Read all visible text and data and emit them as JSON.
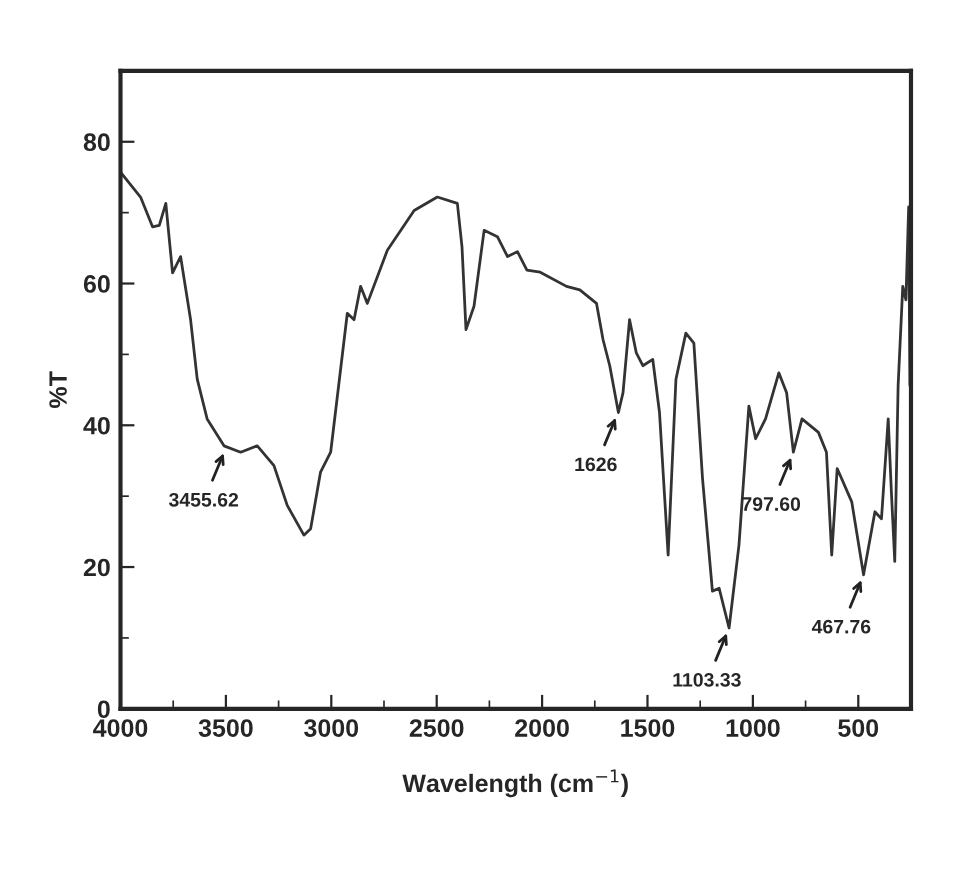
{
  "chart_data": {
    "type": "line",
    "xlabel": "Wavelength (cm$^{−1}$)",
    "ylabel": "%T",
    "xlim": [
      4000,
      250
    ],
    "ylim": [
      0,
      90
    ],
    "xticks": [
      4000,
      3500,
      3000,
      2500,
      2000,
      1500,
      1000,
      500
    ],
    "yticks": [
      0,
      20,
      40,
      60,
      80
    ],
    "grid": false,
    "legend": false,
    "marker": "none",
    "line_style": "solid",
    "series": [
      {
        "color": "#333333",
        "x": [
          4000,
          3905,
          3848,
          3816,
          3785,
          3753,
          3715,
          3668,
          3636,
          3589,
          3509,
          3430,
          3351,
          3272,
          3209,
          3130,
          3098,
          3051,
          3003,
          2924,
          2892,
          2861,
          2829,
          2734,
          2607,
          2497,
          2402,
          2380,
          2361,
          2323,
          2275,
          2212,
          2164,
          2117,
          2072,
          2009,
          1884,
          1821,
          1742,
          1711,
          1679,
          1638,
          1616,
          1585,
          1553,
          1522,
          1475,
          1443,
          1402,
          1365,
          1318,
          1280,
          1239,
          1192,
          1160,
          1113,
          1066,
          1019,
          987,
          940,
          877,
          840,
          808,
          767,
          689,
          651,
          626,
          600,
          531,
          475,
          421,
          390,
          358,
          343,
          327,
          311,
          289,
          274,
          261,
          255
        ],
        "values": [
          75.7,
          72.2,
          68,
          68.2,
          71.3,
          61.5,
          63.8,
          55,
          46.5,
          40.9,
          37.1,
          36.2,
          37.1,
          34.3,
          28.7,
          24.5,
          25.4,
          33.4,
          36.2,
          55.8,
          54.9,
          59.6,
          57.2,
          64.7,
          70.3,
          72.2,
          71.3,
          65.2,
          53.5,
          56.8,
          67.5,
          66.6,
          63.8,
          64.5,
          61.9,
          61.6,
          59.6,
          59.1,
          57.2,
          52.1,
          48.4,
          41.8,
          44.6,
          54.9,
          50.2,
          48.4,
          49.3,
          41.8,
          21.7,
          46.5,
          53,
          51.6,
          32.5,
          16.6,
          17,
          11.4,
          23.1,
          42.7,
          38.1,
          40.9,
          47.4,
          44.6,
          36.2,
          40.9,
          39,
          36.2,
          21.7,
          33.9,
          29.2,
          18.9,
          27.8,
          26.8,
          40.9,
          30.6,
          20.8,
          45.6,
          59.6,
          57.7,
          70.8,
          45.6
        ]
      }
    ],
    "annotations": [
      {
        "text": "3455.62",
        "x": 3500,
        "y": 36.8
      },
      {
        "text": "1626",
        "x": 1640,
        "y": 41.8
      },
      {
        "text": "1103.33",
        "x": 1113,
        "y": 11.4
      },
      {
        "text": "797.60",
        "x": 808,
        "y": 36.2
      },
      {
        "text": "467.76",
        "x": 475,
        "y": 18.9
      }
    ]
  }
}
